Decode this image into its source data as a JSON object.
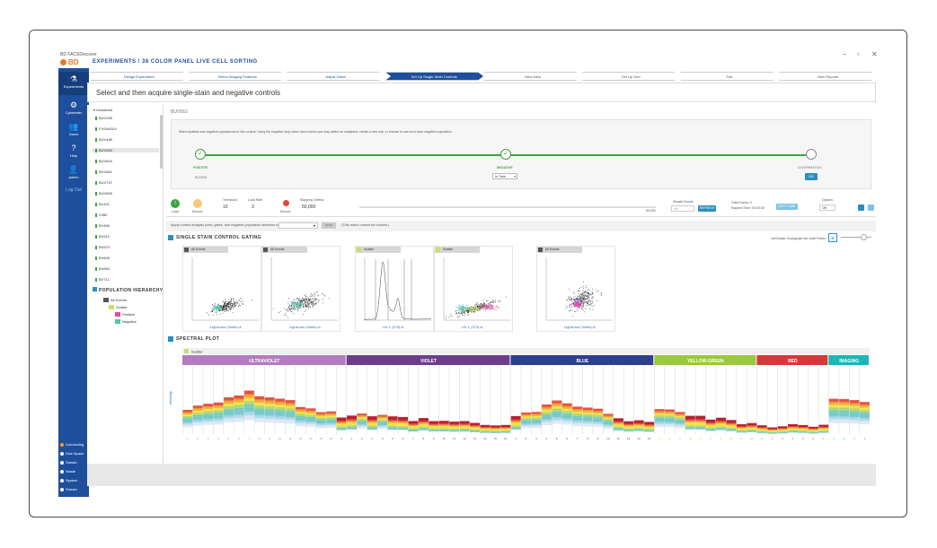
{
  "app": {
    "brand_small": "BD FACSDiscover",
    "brand": "BD",
    "breadcrumb": "EXPERIMENTS / 38 COLOR PANEL LIVE CELL SORTING",
    "window_controls": [
      "–",
      "▫",
      "✕"
    ]
  },
  "sidebar": {
    "items": [
      {
        "label": "Experiments",
        "icon": "flask-icon"
      },
      {
        "label": "Cytometer",
        "icon": "gear-icon"
      },
      {
        "label": "Users",
        "icon": "users-icon"
      },
      {
        "label": "Help",
        "icon": "help-icon"
      },
      {
        "label": "admin",
        "icon": "user-icon"
      }
    ],
    "logout": "Log Out",
    "bottom": [
      "Connecting",
      "Disk Space",
      "Sheath",
      "Waste",
      "System",
      "Stream"
    ]
  },
  "steps": [
    "Design Experiment",
    "Select Imaging Features",
    "Adjust Gains",
    "Set Up Single-Stain Controls",
    "View Data",
    "Set Up Sort",
    "Sort",
    "View Reports"
  ],
  "header": "Select and then acquire single-stain and negative controls",
  "tubes": {
    "group_label": "Unstained",
    "items": [
      "BUV395",
      "FVS440UV",
      "BUV496",
      "BUV563",
      "BUV615",
      "BUV661",
      "BUV737",
      "BUV805",
      "BV421",
      "V450",
      "BV480",
      "BV510",
      "BV570",
      "BV605",
      "BV650",
      "BV711"
    ],
    "selected": "BUV563"
  },
  "population": {
    "title": "POPULATION HIERARCHY",
    "nodes": [
      {
        "label": "All Events",
        "color": "#555555"
      },
      {
        "label": "Scatter",
        "color": "#c8e06b"
      },
      {
        "label": "Positive",
        "color": "#e64aa0"
      },
      {
        "label": "Negative",
        "color": "#4fc4ae"
      }
    ]
  },
  "gating_panel": {
    "control_name": "BUV563",
    "description": "Select positive and negative populations for this control. Using the negative drop-down menu below you may select an unstained, create a new one, or choose to use an in-tube negative population.",
    "positive_label": "POSITIVE",
    "positive_sub": "BUV563",
    "negative_label": "NEGATIVE",
    "negative_value": "In-Tube",
    "confirm_label": "CONFIRMATION",
    "ok": "OK"
  },
  "controls": {
    "load": "Load",
    "record": "Record",
    "threshold_label": "Threshold",
    "threshold_value": "10",
    "load_rate_label": "Load Rate",
    "load_rate_value": "3",
    "record_btn": "Record",
    "stopping_label": "Stopping Criteria",
    "stopping_value": "50,000",
    "progress_end": "50,000",
    "sheath_label": "Sheath Events",
    "sheath_value": "0/s",
    "refresh": "REFRESH",
    "total_events": "Total Events: 0",
    "elapsed": "Elapsed Time: 00:00:00",
    "next_tube": "NEXT TUBE",
    "options_label": "Options",
    "options_value": "Off"
  },
  "applybar": {
    "text": "Apply current analysis plots, gates, and negative population selection to:",
    "apply": "Apply",
    "hint": "(This action cannot be undone.)"
  },
  "gating_section": {
    "title": "SINGLE STAIN CONTROL GATING",
    "zoom_label": "Ice/Classic Scalograph Bin Gate Points:",
    "plots": [
      {
        "label": "All Events",
        "color": "#555555",
        "xlabel": "LightLoss (Violet)-A",
        "type": "scatter1"
      },
      {
        "label": "All Events",
        "color": "#555555",
        "xlabel": "LightLoss (Violet)-A",
        "type": "scatter2"
      },
      {
        "label": "Scatter",
        "color": "#c8e06b",
        "xlabel": "UV 1 (373)-A",
        "type": "hist"
      },
      {
        "label": "Scatter",
        "color": "#c8e06b",
        "xlabel": "UV 1 (373)-A",
        "type": "scatter3"
      },
      {
        "label": "All Events",
        "color": "#555555",
        "xlabel": "LightLoss (Violet)-A",
        "type": "scatter4"
      }
    ]
  },
  "spectral": {
    "title": "SPECTRAL PLOT",
    "population": "Scatter",
    "lasers": [
      {
        "name": "ULTRAVIOLET",
        "color": "#b37bc0",
        "channels": 16
      },
      {
        "name": "VIOLET",
        "color": "#6d3d8c",
        "channels": 16
      },
      {
        "name": "BLUE",
        "color": "#2b3f8c",
        "channels": 14
      },
      {
        "name": "YELLOW-GREEN",
        "color": "#9ac83e",
        "channels": 10
      },
      {
        "name": "RED",
        "color": "#d33a3a",
        "channels": 7
      },
      {
        "name": "IMAGING",
        "color": "#1fb5b5",
        "channels": 4
      }
    ],
    "ylabel": "Intensity"
  }
}
